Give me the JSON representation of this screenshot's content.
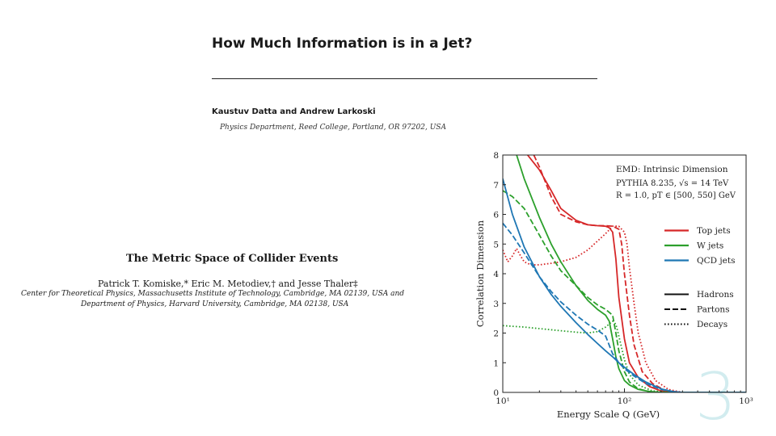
{
  "paper1": {
    "title": "How Much Information is in a Jet?",
    "authors": "Kaustuv Datta and Andrew Larkoski",
    "affiliation": "Physics Department, Reed College, Portland, OR 97202, USA"
  },
  "paper2": {
    "title": "The Metric Space of Collider Events",
    "authors": "Patrick T. Komiske,* Eric M. Metodiev,† and Jesse Thaler‡",
    "affiliation_1": "Center for Theoretical Physics, Massachusetts Institute of Technology, Cambridge, MA 02139, USA and",
    "affiliation_2": "Department of Physics, Harvard University, Cambridge, MA 02138, USA"
  },
  "page_number": "3",
  "chart_data": {
    "type": "line",
    "xscale": "log",
    "xlim": [
      10,
      1000
    ],
    "ylim": [
      0,
      8
    ],
    "xlabel": "Energy Scale Q (GeV)",
    "ylabel": "Correlation Dimension",
    "x_ticks": [
      10,
      100,
      1000
    ],
    "x_tick_labels": [
      "10¹",
      "10²",
      "10³"
    ],
    "y_ticks": [
      0,
      1,
      2,
      3,
      4,
      5,
      6,
      7,
      8
    ],
    "y_tick_labels": [
      "0",
      "1",
      "2",
      "3",
      "4",
      "5",
      "6",
      "7",
      "8"
    ],
    "annotation": {
      "line1": "EMD: Intrinsic Dimension",
      "line2": "PYTHIA 8.235, √s = 14 TeV",
      "line3": "R = 1.0, pT ∈ [500, 550] GeV"
    },
    "legend_colors": [
      {
        "label": "Top jets",
        "color": "#d62728"
      },
      {
        "label": "W jets",
        "color": "#2ca02c"
      },
      {
        "label": "QCD jets",
        "color": "#1f77b4"
      }
    ],
    "legend_styles": [
      {
        "label": "Hadrons",
        "dash": "solid"
      },
      {
        "label": "Partons",
        "dash": "dashed"
      },
      {
        "label": "Decays",
        "dash": "dotted"
      }
    ],
    "series": [
      {
        "name": "Top jets – Hadrons",
        "color": "#d62728",
        "dash": "solid",
        "x": [
          16,
          20,
          25,
          30,
          40,
          50,
          60,
          70,
          75,
          80,
          85,
          90,
          100,
          110,
          130,
          160,
          200,
          250,
          1000
        ],
        "y": [
          8,
          7.5,
          6.8,
          6.2,
          5.8,
          5.65,
          5.62,
          5.6,
          5.55,
          5.4,
          4.5,
          3.2,
          1.8,
          1.0,
          0.5,
          0.2,
          0.05,
          0,
          0
        ]
      },
      {
        "name": "Top jets – Partons",
        "color": "#d62728",
        "dash": "dashed",
        "x": [
          18,
          20,
          25,
          30,
          40,
          50,
          60,
          70,
          80,
          90,
          95,
          100,
          110,
          120,
          140,
          170,
          220,
          300,
          1000
        ],
        "y": [
          8,
          7.6,
          6.6,
          6.0,
          5.75,
          5.65,
          5.62,
          5.62,
          5.6,
          5.5,
          5.0,
          4.0,
          2.6,
          1.6,
          0.7,
          0.3,
          0.05,
          0,
          0
        ]
      },
      {
        "name": "Top jets – Decays",
        "color": "#d62728",
        "dash": "dotted",
        "x": [
          10,
          11,
          12,
          13,
          14,
          15,
          17,
          20,
          25,
          30,
          40,
          50,
          60,
          70,
          80,
          90,
          100,
          105,
          110,
          120,
          130,
          150,
          180,
          230,
          300,
          1000
        ],
        "y": [
          4.8,
          4.4,
          4.6,
          4.85,
          4.6,
          4.4,
          4.3,
          4.3,
          4.35,
          4.4,
          4.55,
          4.8,
          5.1,
          5.35,
          5.6,
          5.6,
          5.4,
          5.0,
          4.2,
          3.0,
          2.0,
          1.0,
          0.4,
          0.1,
          0,
          0
        ]
      },
      {
        "name": "W jets – Hadrons",
        "color": "#2ca02c",
        "dash": "solid",
        "x": [
          13,
          15,
          20,
          25,
          30,
          40,
          50,
          60,
          70,
          75,
          80,
          85,
          90,
          100,
          110,
          130,
          160,
          200,
          1000
        ],
        "y": [
          8,
          7.2,
          5.9,
          5.0,
          4.4,
          3.6,
          3.1,
          2.8,
          2.6,
          2.4,
          1.8,
          1.2,
          0.8,
          0.4,
          0.25,
          0.1,
          0.03,
          0,
          0
        ]
      },
      {
        "name": "W jets – Partons",
        "color": "#2ca02c",
        "dash": "dashed",
        "x": [
          10,
          12,
          15,
          20,
          25,
          30,
          40,
          50,
          60,
          70,
          80,
          85,
          90,
          100,
          110,
          130,
          160,
          200,
          1000
        ],
        "y": [
          6.8,
          6.6,
          6.2,
          5.3,
          4.6,
          4.1,
          3.6,
          3.2,
          2.95,
          2.8,
          2.6,
          2.0,
          1.4,
          0.7,
          0.35,
          0.12,
          0.03,
          0,
          0
        ]
      },
      {
        "name": "W jets – Decays",
        "color": "#2ca02c",
        "dash": "dotted",
        "x": [
          10,
          15,
          20,
          30,
          40,
          50,
          60,
          70,
          80,
          85,
          90,
          100,
          110,
          130,
          170,
          250,
          1000
        ],
        "y": [
          2.25,
          2.2,
          2.15,
          2.08,
          2.03,
          2.0,
          2.05,
          2.2,
          2.4,
          2.3,
          1.9,
          1.1,
          0.6,
          0.25,
          0.05,
          0,
          0
        ]
      },
      {
        "name": "QCD jets – Hadrons",
        "color": "#1f77b4",
        "dash": "solid",
        "x": [
          10,
          12,
          15,
          20,
          25,
          30,
          40,
          50,
          60,
          70,
          80,
          90,
          100,
          120,
          150,
          200,
          250,
          300,
          1000
        ],
        "y": [
          7.2,
          6.0,
          4.9,
          3.9,
          3.3,
          2.9,
          2.35,
          1.95,
          1.65,
          1.4,
          1.2,
          1.0,
          0.85,
          0.6,
          0.35,
          0.12,
          0.03,
          0,
          0
        ]
      },
      {
        "name": "QCD jets – Partons",
        "color": "#1f77b4",
        "dash": "dashed",
        "x": [
          10,
          12,
          15,
          20,
          25,
          30,
          40,
          50,
          60,
          70,
          80,
          90,
          100,
          120,
          150,
          200,
          250,
          300,
          1000
        ],
        "y": [
          5.7,
          5.3,
          4.7,
          3.9,
          3.4,
          3.05,
          2.6,
          2.3,
          2.1,
          1.9,
          1.3,
          1.0,
          0.8,
          0.55,
          0.3,
          0.1,
          0.02,
          0,
          0
        ]
      }
    ]
  }
}
